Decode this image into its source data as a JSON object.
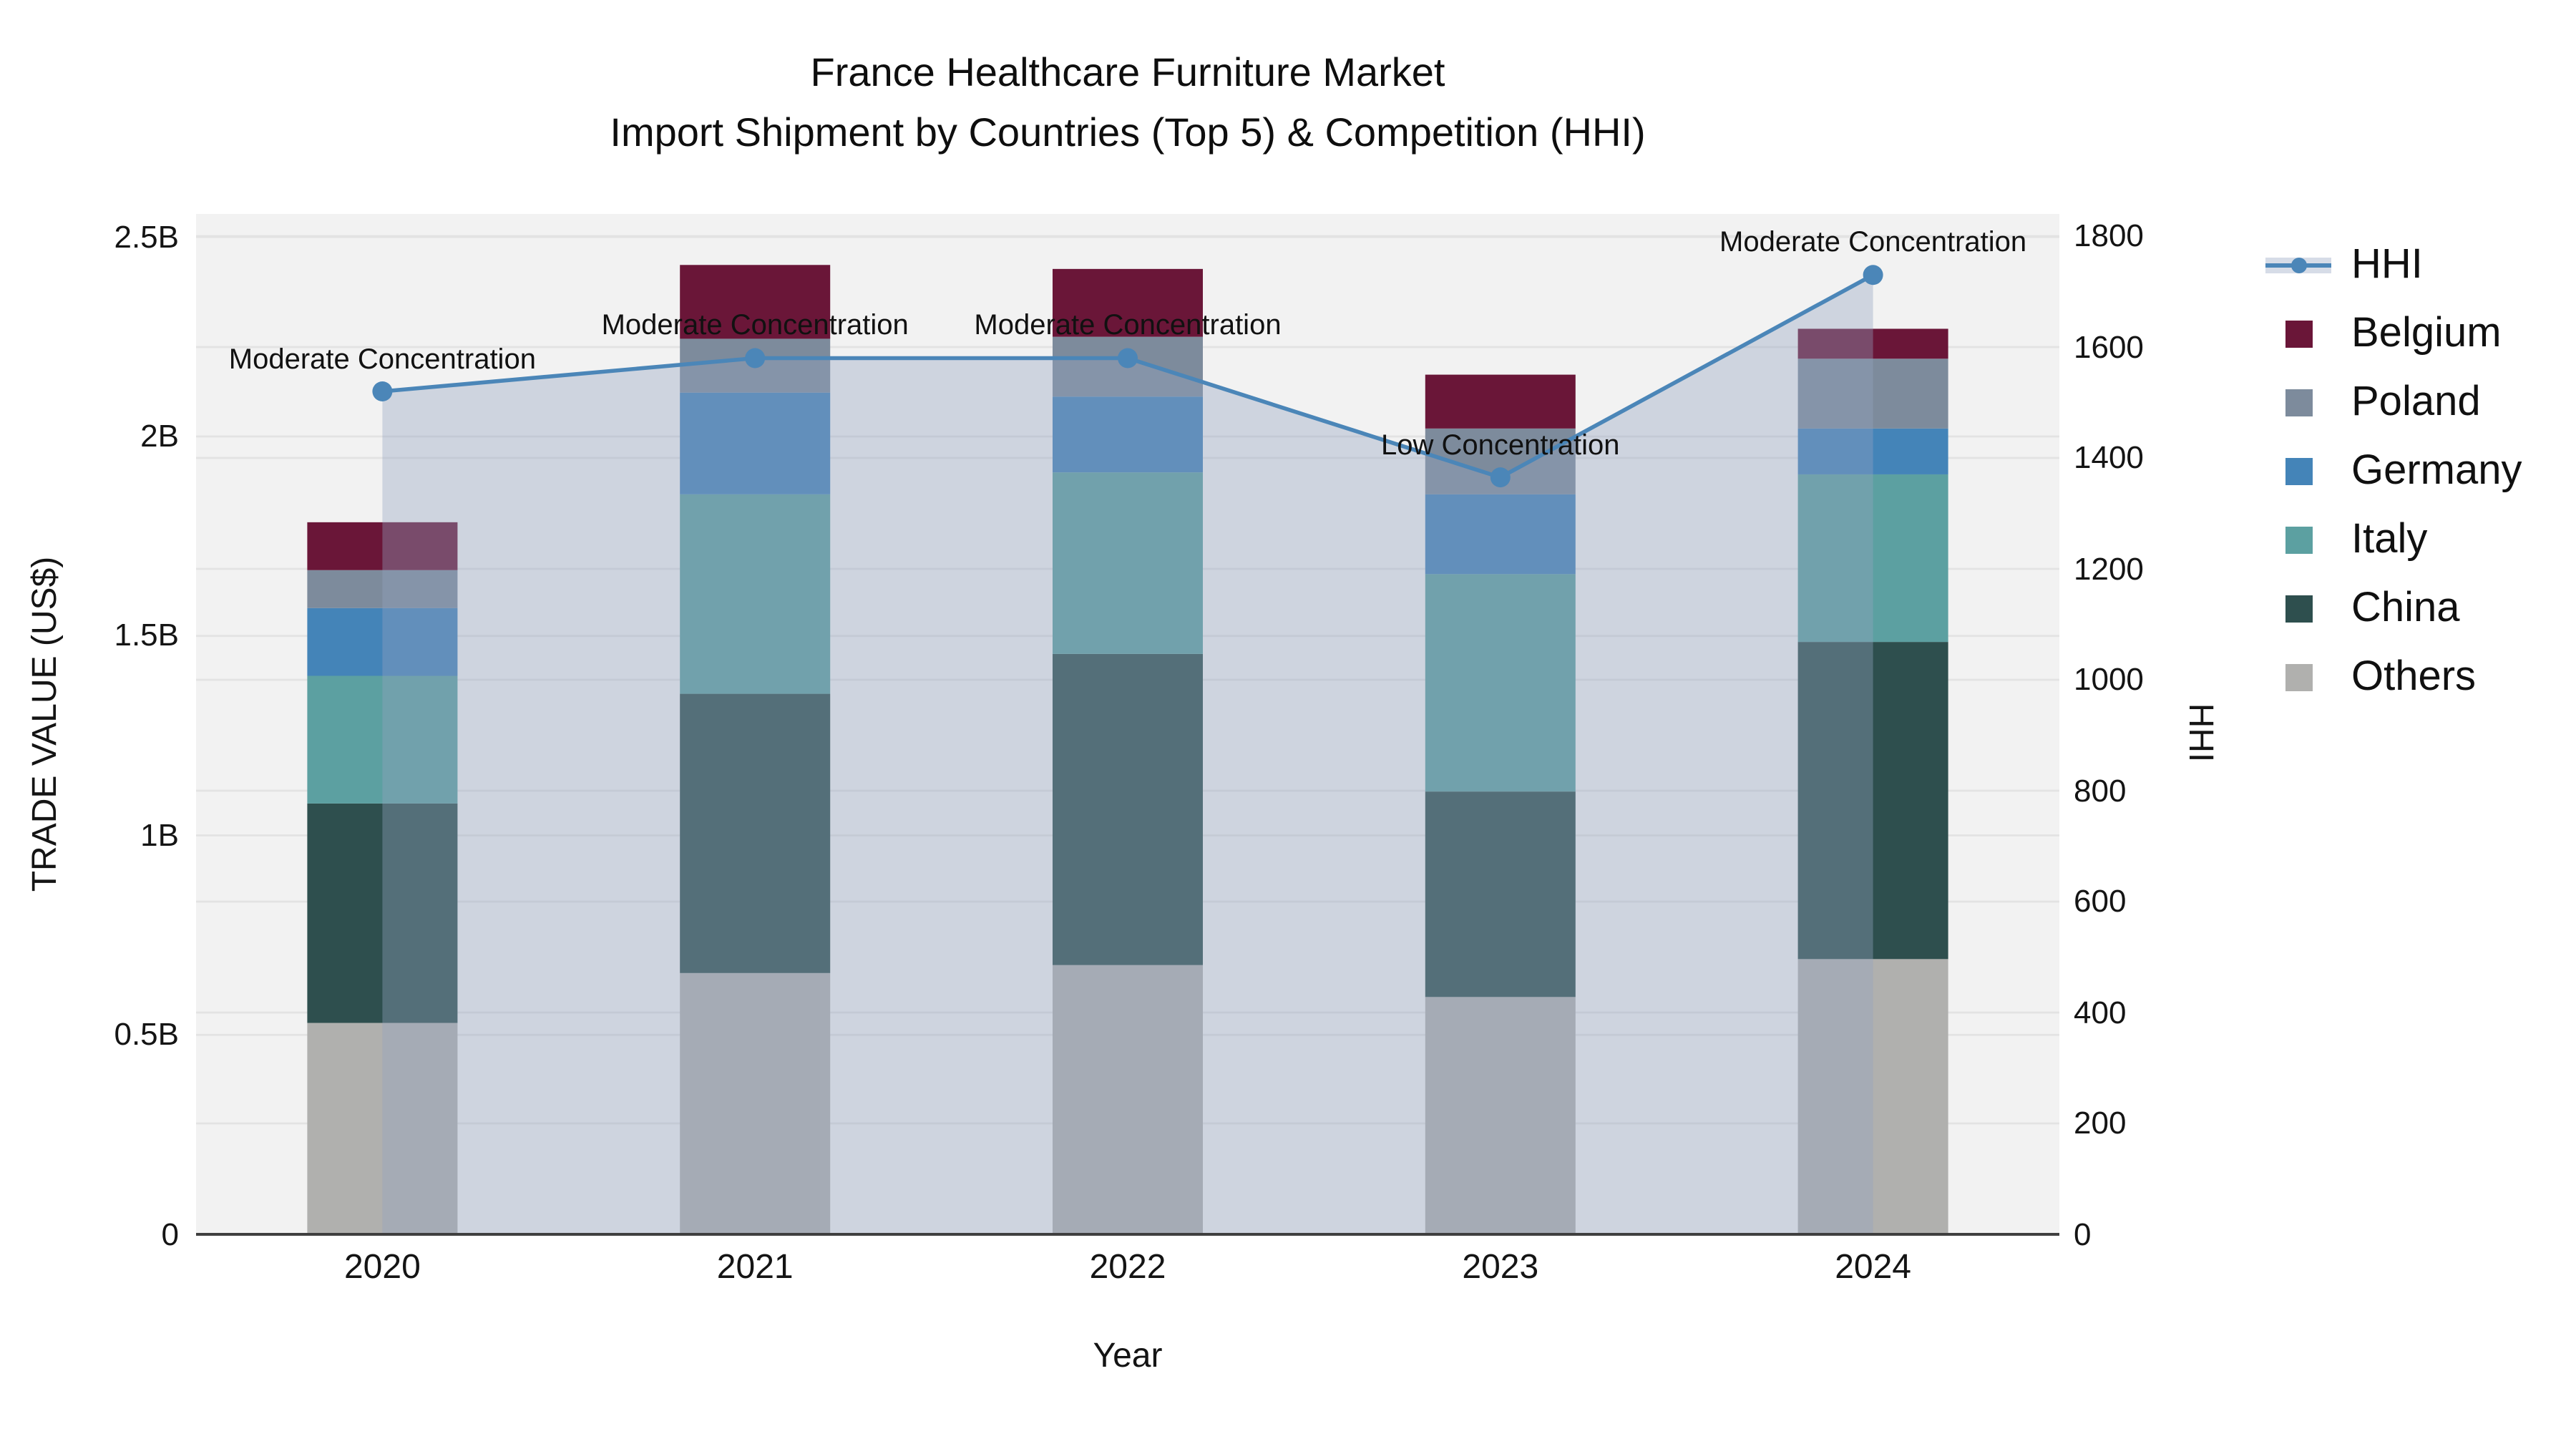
{
  "title": {
    "line1": "France Healthcare Furniture Market",
    "line2": "Import Shipment by Countries (Top 5) & Competition (HHI)"
  },
  "axes": {
    "y_label": "TRADE VALUE (US$)",
    "x_label": "Year",
    "y2_label": "HHI",
    "y_ticks": {
      "values": [
        0,
        0.5,
        1,
        1.5,
        2,
        2.5
      ],
      "labels": [
        "0",
        "0.5B",
        "1B",
        "1.5B",
        "2B",
        "2.5B"
      ],
      "max": 2.5
    },
    "y2_ticks": {
      "values": [
        0,
        200,
        400,
        600,
        800,
        1000,
        1200,
        1400,
        1600,
        1800
      ],
      "labels": [
        "0",
        "200",
        "400",
        "600",
        "800",
        "1000",
        "1200",
        "1400",
        "1600",
        "1800"
      ],
      "max": 1800
    }
  },
  "chart_data": {
    "type": "stacked-bar+line",
    "title": "France Healthcare Furniture Market — Import Shipment by Countries (Top 5) & Competition (HHI)",
    "xlabel": "Year",
    "ylabel": "TRADE VALUE (US$)",
    "y2label": "HHI",
    "ylim": [
      0,
      2.5
    ],
    "y2lim": [
      0,
      1800
    ],
    "grid": true,
    "legend_position": "right",
    "categories": [
      "2020",
      "2021",
      "2022",
      "2023",
      "2024"
    ],
    "value_unit": "billions USD",
    "series": [
      {
        "name": "Others",
        "color": "#B0B0AE",
        "values": [
          0.53,
          0.655,
          0.675,
          0.595,
          0.69
        ]
      },
      {
        "name": "China",
        "color": "#2E4F4E",
        "values": [
          0.55,
          0.7,
          0.78,
          0.515,
          0.795
        ]
      },
      {
        "name": "Italy",
        "color": "#5CA0A1",
        "values": [
          0.32,
          0.5,
          0.455,
          0.545,
          0.42
        ]
      },
      {
        "name": "Germany",
        "color": "#4484B8",
        "values": [
          0.17,
          0.255,
          0.19,
          0.2,
          0.115
        ]
      },
      {
        "name": "Poland",
        "color": "#7D8B9C",
        "values": [
          0.095,
          0.135,
          0.15,
          0.165,
          0.175
        ]
      },
      {
        "name": "Belgium",
        "color": "#6A1638",
        "values": [
          0.12,
          0.185,
          0.17,
          0.135,
          0.075
        ]
      }
    ],
    "line_series": {
      "name": "HHI",
      "color": "#4B86B8",
      "area_fill": "rgba(148,162,192,0.38)",
      "values": [
        1520,
        1580,
        1580,
        1365,
        1730
      ]
    },
    "annotations": [
      "Moderate Concentration",
      "Moderate Concentration",
      "Moderate Concentration",
      "Low Concentration",
      "Moderate Concentration"
    ]
  },
  "colors": {
    "plot_bg": "#F2F2F2",
    "grid": "#E3E3E3",
    "axis_line": "#3F3F3F",
    "text": "#111111"
  }
}
